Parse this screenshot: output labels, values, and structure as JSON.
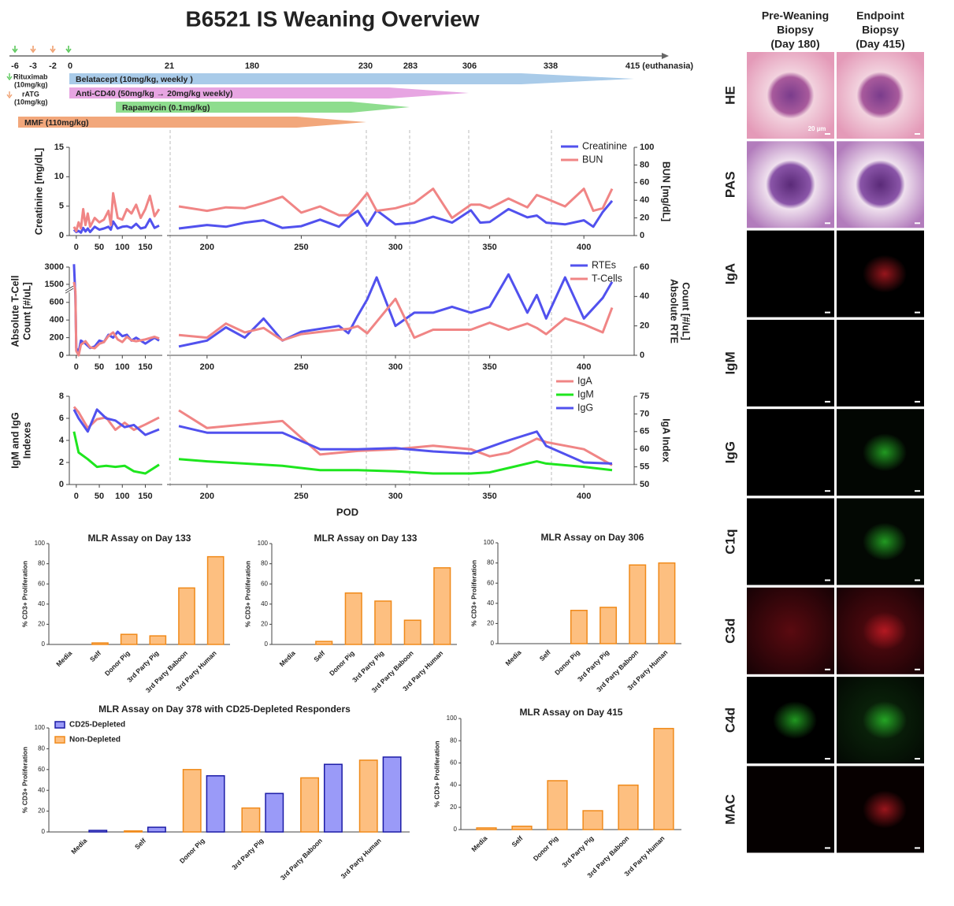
{
  "title": "B6521 IS Weaning Overview",
  "timeline": {
    "days": [
      "-6",
      "-3",
      "-2",
      "0",
      "21",
      "180",
      "230",
      "283",
      "306",
      "338",
      "415 (euthanasia)"
    ],
    "notes": [
      {
        "name": "Rituximab",
        "dose": "(10mg/kg)"
      },
      {
        "name": "rATG",
        "dose": "(10mg/kg)"
      }
    ],
    "drugs": [
      {
        "label": "Belatacept (10mg/kg, weekly )",
        "color": "#a9cbe9"
      },
      {
        "label": "Anti-CD40 (50mg/kg → 20mg/kg weekly)",
        "color": "#e7a5e2"
      },
      {
        "label": "Rapamycin (0.1mg/kg)",
        "color": "#8edd8e"
      },
      {
        "label": "MMF (110mg/kg)",
        "color": "#f2a77b"
      }
    ]
  },
  "chart_data": [
    {
      "type": "line",
      "x": [
        -5,
        0,
        5,
        10,
        15,
        20,
        25,
        30,
        40,
        50,
        60,
        70,
        75,
        80,
        90,
        100,
        110,
        120,
        130,
        140,
        150,
        160,
        170,
        180,
        185,
        200,
        210,
        220,
        230,
        240,
        250,
        260,
        270,
        275,
        280,
        285,
        290,
        300,
        310,
        320,
        330,
        340,
        345,
        350,
        360,
        370,
        375,
        380,
        390,
        400,
        405,
        410,
        415
      ],
      "xlim": [
        -10,
        420
      ],
      "xbreak": 180,
      "xticks": [
        0,
        50,
        100,
        150,
        200,
        250,
        300,
        350,
        400
      ],
      "ylabel": [
        "Creatinine [mg/dL]"
      ],
      "ylim": [
        0,
        15
      ],
      "yticks": [
        0,
        5,
        10,
        15
      ],
      "y2label": [
        "BUN [mg/dL]"
      ],
      "y2lim": [
        0,
        100
      ],
      "y2ticks": [
        0,
        20,
        40,
        60,
        80,
        100
      ],
      "series": [
        {
          "name": "Creatinine",
          "color": "#5151ee",
          "values": [
            1,
            0.6,
            0.8,
            0.5,
            1.3,
            0.7,
            1.2,
            0.6,
            1.5,
            1,
            1.2,
            1.5,
            1,
            2.4,
            1.2,
            1.5,
            1.6,
            1.3,
            2,
            1.2,
            1.4,
            2.8,
            1.3,
            1.7,
            1.2,
            1.8,
            1.5,
            2.2,
            2.6,
            1.3,
            1.6,
            2.7,
            1.5,
            3.1,
            4.2,
            1.7,
            4.3,
            1.9,
            2.2,
            3.2,
            2.2,
            4.3,
            2.2,
            2.3,
            4.5,
            3.1,
            3.4,
            2.2,
            1.9,
            2.6,
            1.5,
            4.0,
            5.9
          ]
        },
        {
          "name": "BUN",
          "color": "#f08585",
          "axis": "y2",
          "values": [
            10,
            5,
            15,
            8,
            30,
            12,
            25,
            10,
            20,
            15,
            18,
            28,
            12,
            48,
            20,
            18,
            30,
            25,
            35,
            20,
            30,
            45,
            22,
            30,
            33,
            28,
            32,
            31,
            37,
            44,
            26,
            33,
            23,
            23,
            35,
            48,
            28,
            31,
            37,
            53,
            20,
            35,
            35,
            31,
            42,
            32,
            46,
            42,
            33,
            53,
            28,
            31,
            53
          ]
        }
      ]
    },
    {
      "type": "line",
      "x": [
        -5,
        -2,
        0,
        5,
        10,
        20,
        30,
        40,
        50,
        60,
        70,
        80,
        90,
        100,
        110,
        120,
        130,
        150,
        170,
        180,
        185,
        200,
        210,
        220,
        230,
        240,
        250,
        270,
        275,
        280,
        285,
        290,
        300,
        310,
        320,
        330,
        340,
        350,
        360,
        370,
        375,
        380,
        390,
        400,
        410,
        415
      ],
      "xlim": [
        -10,
        420
      ],
      "xbreak": 180,
      "xticks": [
        0,
        50,
        100,
        150,
        200,
        250,
        300,
        350,
        400
      ],
      "ylabel": [
        "Absolute T-Cell",
        "Count [#/uL]"
      ],
      "ylim": [
        0,
        3000
      ],
      "ybreak": 700,
      "yticks": [
        0,
        200,
        400,
        600,
        1500,
        3000
      ],
      "y2label": [
        "Absolute RTE",
        "Count [#/uL]"
      ],
      "y2lim": [
        0,
        60
      ],
      "y2ticks": [
        0,
        20,
        40,
        60
      ],
      "series": [
        {
          "name": "RTEs",
          "color": "#5151ee",
          "axis": "y2",
          "values": [
            62,
            40,
            5,
            2,
            10,
            8,
            5,
            6,
            10,
            9,
            14,
            12,
            16,
            13,
            14,
            10,
            12,
            8,
            12,
            10,
            6,
            10,
            19,
            12,
            25,
            10,
            16,
            20,
            15,
            27,
            38,
            53,
            20,
            29,
            29,
            33,
            29,
            33,
            55,
            29,
            41,
            25,
            53,
            25,
            39,
            50
          ]
        },
        {
          "name": "T-Cells",
          "color": "#f08585",
          "values": [
            1700,
            900,
            50,
            0,
            120,
            160,
            90,
            80,
            130,
            150,
            220,
            260,
            180,
            150,
            210,
            170,
            160,
            180,
            210,
            190,
            230,
            200,
            360,
            260,
            310,
            170,
            240,
            290,
            300,
            330,
            250,
            380,
            640,
            200,
            290,
            290,
            290,
            370,
            290,
            360,
            310,
            240,
            420,
            350,
            260,
            540
          ]
        }
      ]
    },
    {
      "type": "line",
      "x": [
        -5,
        5,
        25,
        45,
        65,
        85,
        105,
        125,
        150,
        180,
        185,
        200,
        220,
        240,
        260,
        280,
        300,
        320,
        340,
        350,
        360,
        375,
        380,
        400,
        415
      ],
      "xlim": [
        -10,
        420
      ],
      "xbreak": 180,
      "xticks": [
        0,
        50,
        100,
        150,
        200,
        250,
        300,
        350,
        400
      ],
      "xlabel": "POD",
      "ylabel": [
        "IgM and  IgG",
        "Indexes"
      ],
      "ylim": [
        0,
        8
      ],
      "yticks": [
        0,
        2,
        4,
        6,
        8
      ],
      "y2label": [
        "IgA  Index"
      ],
      "y2lim": [
        50,
        75
      ],
      "y2ticks": [
        50,
        55,
        60,
        65,
        70,
        75
      ],
      "series": [
        {
          "name": "IgA",
          "color": "#f08585",
          "axis": "y2",
          "values": [
            72,
            70.5,
            66,
            68.5,
            69,
            65.5,
            67.5,
            65.5,
            67,
            69,
            71,
            66,
            67,
            68,
            58.5,
            59.5,
            60,
            61,
            60,
            58,
            59,
            63,
            62,
            60,
            55.5
          ]
        },
        {
          "name": "IgM",
          "color": "#1ee61e",
          "values": [
            4.8,
            2.9,
            2.3,
            1.6,
            1.7,
            1.6,
            1.7,
            1.2,
            1.0,
            1.8,
            2.3,
            2.1,
            1.9,
            1.7,
            1.3,
            1.3,
            1.2,
            1.0,
            1.0,
            1.1,
            1.5,
            2.1,
            1.9,
            1.6,
            1.3
          ]
        },
        {
          "name": "IgG",
          "color": "#5151ee",
          "values": [
            6.8,
            6.0,
            4.8,
            6.8,
            6.0,
            5.8,
            5.2,
            5.4,
            4.5,
            5.0,
            5.3,
            4.7,
            4.7,
            4.7,
            3.2,
            3.2,
            3.3,
            3.0,
            2.8,
            3.4,
            4.0,
            4.8,
            3.5,
            2.0,
            1.9
          ]
        }
      ]
    },
    {
      "type": "bar",
      "title": "MLR Assay on Day 133",
      "ylabel": "% CD3+ Proliferation",
      "categories": [
        "Media",
        "Self",
        "Donor Pig",
        "3rd Party Pig",
        "3rd Party Baboon",
        "3rd Party Human"
      ],
      "ylim": [
        0,
        100
      ],
      "yticks": [
        0,
        20,
        40,
        60,
        80,
        100
      ],
      "series": [
        {
          "color": "#fdbf80",
          "edgecolor": "#f08a1a",
          "values": [
            0,
            1.5,
            10,
            8.5,
            56,
            87
          ]
        }
      ]
    },
    {
      "type": "bar",
      "title": "MLR Assay on Day 133",
      "ylabel": "% CD3+ Proliferation",
      "categories": [
        "Media",
        "Self",
        "Donor Pig",
        "3rd Party Pig",
        "3rd Party Baboon",
        "3rd Party Human"
      ],
      "ylim": [
        0,
        100
      ],
      "yticks": [
        0,
        20,
        40,
        60,
        80,
        100
      ],
      "series": [
        {
          "color": "#fdbf80",
          "edgecolor": "#f08a1a",
          "values": [
            0,
            3,
            51,
            43,
            24,
            76
          ]
        }
      ]
    },
    {
      "type": "bar",
      "title": "MLR Assay on Day 306",
      "ylabel": "% CD3+ Proliferation",
      "categories": [
        "Media",
        "Self",
        "Donor Pig",
        "3rd Party Pig",
        "3rd Party Baboon",
        "3rd Party Human"
      ],
      "ylim": [
        0,
        100
      ],
      "yticks": [
        0,
        20,
        40,
        60,
        80,
        100
      ],
      "series": [
        {
          "color": "#fdbf80",
          "edgecolor": "#f08a1a",
          "values": [
            0,
            0,
            33,
            36,
            78,
            80
          ]
        }
      ]
    },
    {
      "type": "bar",
      "title": "MLR Assay on Day 378 with  CD25-Depleted Responders",
      "ylabel": "% CD3+ Proliferation",
      "categories": [
        "Media",
        "Self",
        "Donor Pig",
        "3rd Party Pig",
        "3rd Party Baboon",
        "3rd Party Human"
      ],
      "ylim": [
        0,
        100
      ],
      "yticks": [
        0,
        20,
        40,
        60,
        80,
        100
      ],
      "legend": "upper left",
      "series": [
        {
          "name": "CD25-Depleted",
          "color": "#9a9af8",
          "edgecolor": "#1a1aa6",
          "values": [
            1.5,
            4.5,
            54,
            37,
            65,
            72
          ]
        },
        {
          "name": "Non-Depleted",
          "color": "#fdbf80",
          "edgecolor": "#f08a1a",
          "values": [
            0,
            1,
            60,
            23,
            52,
            69
          ]
        }
      ]
    },
    {
      "type": "bar",
      "title": "MLR Assay on Day 415",
      "ylabel": "% CD3+ Proliferation",
      "categories": [
        "Media",
        "Self",
        "Donor Pig",
        "3rd Party Pig",
        "3rd Party Baboon",
        "3rd Party Human"
      ],
      "ylim": [
        0,
        100
      ],
      "yticks": [
        0,
        20,
        40,
        60,
        80,
        100
      ],
      "series": [
        {
          "color": "#fdbf80",
          "edgecolor": "#f08a1a",
          "values": [
            1.5,
            3,
            44,
            17,
            40,
            91
          ]
        }
      ]
    }
  ],
  "histology": {
    "columns": [
      [
        "Pre-Weaning",
        "Biopsy",
        "(Day 180)"
      ],
      [
        "Endpoint",
        "Biopsy",
        "(Day 415)"
      ]
    ],
    "rows": [
      "HE",
      "PAS",
      "IgA",
      "IgM",
      "IgG",
      "C1q",
      "C3d",
      "C4d",
      "MAC"
    ],
    "scale_label": "20 µm"
  }
}
